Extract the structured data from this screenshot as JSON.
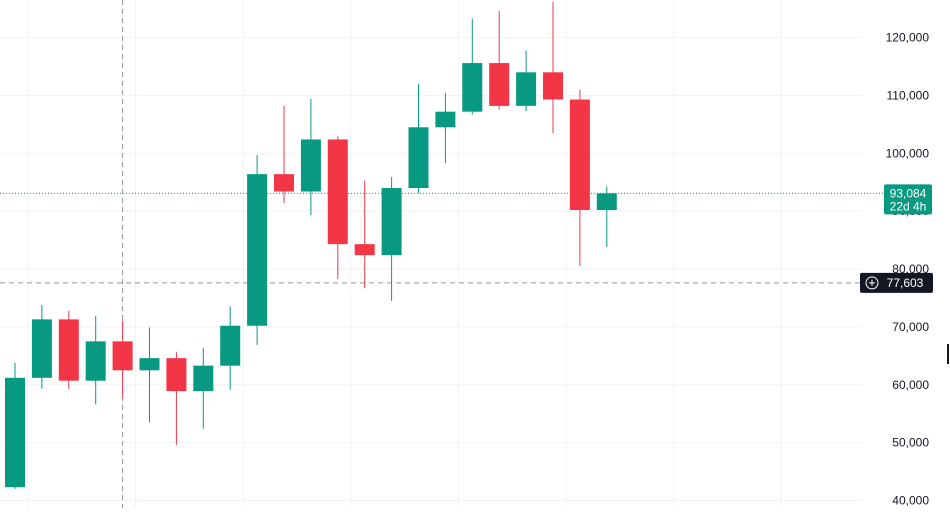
{
  "chart_data": {
    "type": "candlestick",
    "colors": {
      "up": "#089981",
      "down": "#f23645",
      "grid": "#f0f3fa",
      "axis_text": "#131722",
      "price_line": "#089981",
      "crosshair": "#9598a1",
      "crosshair_label_bg": "#131722"
    },
    "y_axis": {
      "ylim": [
        38700,
        126500
      ],
      "ticks": [
        40000,
        50000,
        60000,
        70000,
        80000,
        90000,
        100000,
        110000,
        120000
      ],
      "tick_labels": [
        "40,000",
        "50,000",
        "60,000",
        "70,000",
        "80,000",
        "90,000",
        "100,000",
        "110,000",
        "120,000"
      ],
      "position": "right"
    },
    "candles": [
      {
        "open": 42300,
        "high": 63800,
        "low": 42000,
        "close": 61200
      },
      {
        "open": 61200,
        "high": 73800,
        "low": 59300,
        "close": 71300
      },
      {
        "open": 71300,
        "high": 72800,
        "low": 59300,
        "close": 60700
      },
      {
        "open": 60700,
        "high": 71900,
        "low": 56600,
        "close": 67500
      },
      {
        "open": 67500,
        "high": 71100,
        "low": 57700,
        "close": 62500
      },
      {
        "open": 62500,
        "high": 69900,
        "low": 53500,
        "close": 64600
      },
      {
        "open": 64600,
        "high": 65700,
        "low": 49600,
        "close": 58900
      },
      {
        "open": 58900,
        "high": 66400,
        "low": 52400,
        "close": 63300
      },
      {
        "open": 63300,
        "high": 73500,
        "low": 59100,
        "close": 70200
      },
      {
        "open": 70200,
        "high": 99700,
        "low": 66900,
        "close": 96400
      },
      {
        "open": 96400,
        "high": 108200,
        "low": 91400,
        "close": 93400
      },
      {
        "open": 93400,
        "high": 109400,
        "low": 89300,
        "close": 102400
      },
      {
        "open": 102400,
        "high": 102900,
        "low": 78300,
        "close": 84300
      },
      {
        "open": 84300,
        "high": 95300,
        "low": 76700,
        "close": 82400
      },
      {
        "open": 82400,
        "high": 95900,
        "low": 74500,
        "close": 94000
      },
      {
        "open": 94000,
        "high": 112000,
        "low": 93100,
        "close": 104500
      },
      {
        "open": 104500,
        "high": 110400,
        "low": 98300,
        "close": 107200
      },
      {
        "open": 107200,
        "high": 123300,
        "low": 106700,
        "close": 115600
      },
      {
        "open": 115600,
        "high": 124600,
        "low": 107600,
        "close": 108200
      },
      {
        "open": 108200,
        "high": 117800,
        "low": 107300,
        "close": 114000
      },
      {
        "open": 114000,
        "high": 126200,
        "low": 103500,
        "close": 109300
      },
      {
        "open": 109300,
        "high": 111000,
        "low": 80500,
        "close": 90200
      },
      {
        "open": 90200,
        "high": 94300,
        "low": 83800,
        "close": 93084
      }
    ],
    "current_price": {
      "value": 93084,
      "label": "93,084",
      "countdown": "22d 4h"
    },
    "crosshair": {
      "price": 77603,
      "label": "77,603",
      "candle_index": 4,
      "plus_icon": "plus-circle-icon"
    },
    "grid": true,
    "legend": "none"
  }
}
